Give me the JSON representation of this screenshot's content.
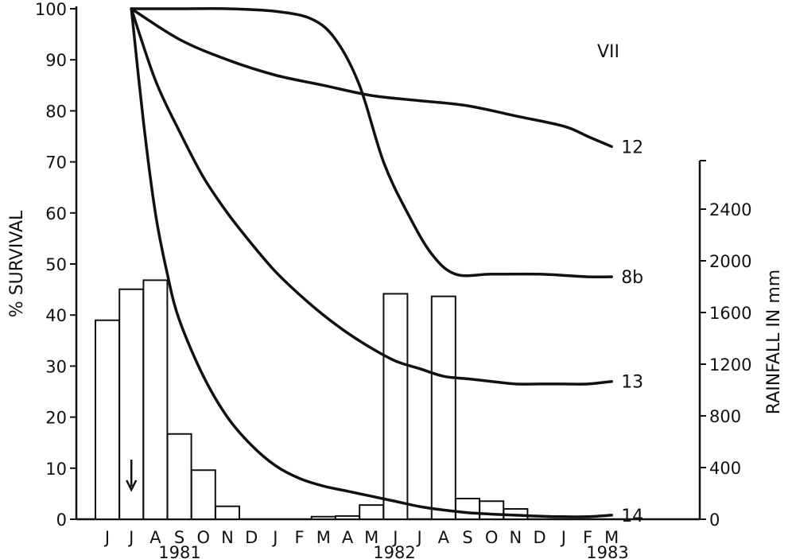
{
  "chart_data": {
    "type": "line",
    "panel_label": "VII",
    "left_axis": {
      "label": "% SURVIVAL",
      "ticks": [
        "0",
        "10",
        "20",
        "30",
        "40",
        "50",
        "60",
        "70",
        "80",
        "90",
        "100"
      ],
      "range": [
        0,
        100
      ]
    },
    "right_axis": {
      "label": "RAINFALL IN mm",
      "ticks": [
        "0",
        "400",
        "800",
        "1200",
        "1600",
        "2000",
        "2400"
      ],
      "range": [
        0,
        2800
      ]
    },
    "months": [
      "J",
      "J",
      "A",
      "S",
      "O",
      "N",
      "D",
      "J",
      "F",
      "M",
      "A",
      "M",
      "J",
      "J",
      "A",
      "S",
      "O",
      "N",
      "D",
      "J",
      "F",
      "M"
    ],
    "years": [
      "1981",
      "1982",
      "1983"
    ],
    "arrow_month_index": 1,
    "rainfall_mm": [
      1540,
      1780,
      1850,
      660,
      380,
      100,
      0,
      0,
      0,
      20,
      25,
      110,
      1745,
      0,
      1725,
      160,
      140,
      80,
      0,
      0,
      0,
      0
    ],
    "series": [
      {
        "name": "12",
        "x": [
          1,
          3,
          5,
          7,
          9,
          11,
          13,
          15,
          17,
          19,
          20,
          21
        ],
        "y": [
          100,
          94,
          90,
          87,
          85,
          83,
          82,
          81,
          79,
          77,
          75,
          73
        ]
      },
      {
        "name": "8b",
        "x": [
          1,
          3,
          5,
          7,
          8.5,
          9.5,
          10.5,
          11.5,
          12.5,
          13.5,
          14.5,
          16,
          18,
          20,
          21
        ],
        "y": [
          100,
          100,
          100,
          99.5,
          98,
          94,
          85,
          70,
          60,
          52,
          48,
          48,
          48,
          47.5,
          47.5
        ]
      },
      {
        "name": "13",
        "x": [
          1,
          2,
          3,
          4,
          5,
          6,
          7,
          8,
          9,
          10,
          11,
          12,
          13,
          14,
          15,
          16,
          17,
          18,
          19,
          20,
          21
        ],
        "y": [
          100,
          86,
          76,
          67,
          60,
          54,
          48.5,
          44,
          40,
          36.5,
          33.5,
          31,
          29.5,
          28,
          27.5,
          27,
          26.5,
          26.5,
          26.5,
          26.5,
          27
        ]
      },
      {
        "name": "14",
        "x": [
          1,
          1.5,
          2,
          2.5,
          3,
          4,
          5,
          6,
          7,
          8,
          9,
          10,
          11,
          12,
          13,
          14,
          15,
          16,
          17,
          18,
          19,
          20,
          21
        ],
        "y": [
          100,
          78,
          60,
          48,
          39,
          28,
          20,
          14.5,
          10.5,
          8,
          6.5,
          5.5,
          4.5,
          3.5,
          2.5,
          1.8,
          1.3,
          1,
          0.8,
          0.6,
          0.5,
          0.5,
          0.8
        ]
      }
    ]
  }
}
